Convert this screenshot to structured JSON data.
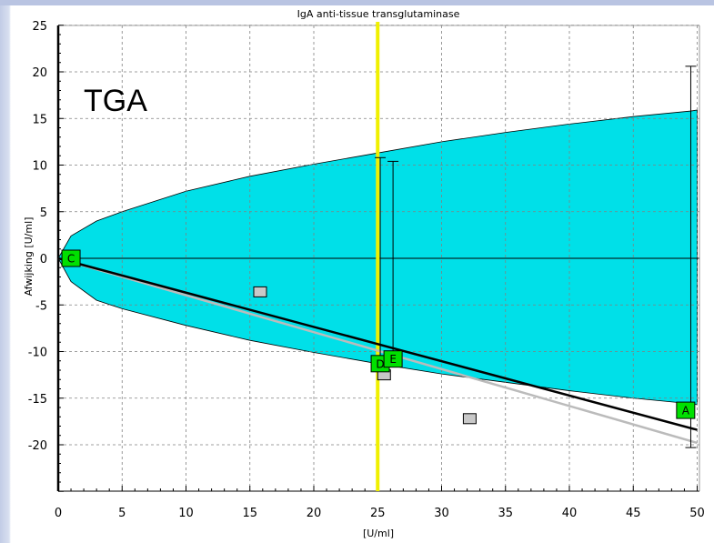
{
  "chart_data": {
    "type": "scatter",
    "title": "IgA anti-tissue transglutaminase",
    "annotation": "TGA",
    "xlabel": "[U/ml]",
    "ylabel": "Afwijking [U/ml]",
    "xlim": [
      0,
      50
    ],
    "ylim": [
      -25,
      25
    ],
    "x_ticks": [
      0,
      5,
      10,
      15,
      20,
      25,
      30,
      35,
      40,
      45,
      50
    ],
    "y_ticks": [
      25,
      20,
      15,
      10,
      5,
      0,
      -5,
      -10,
      -15,
      -20
    ],
    "grid": true,
    "colors": {
      "band": "#00e0e8",
      "vline": "#f0f000",
      "regression": "#000000",
      "regression_alt": "#bbbbbb",
      "labeled_point": "#00e000",
      "other_point": "#c8c8c8"
    },
    "vertical_line_x": 25,
    "band": {
      "x": [
        0,
        1,
        3,
        5,
        10,
        15,
        20,
        25,
        30,
        35,
        40,
        45,
        49.5,
        50
      ],
      "upper": [
        0,
        2.4,
        4.0,
        5.0,
        7.2,
        8.8,
        10.1,
        11.3,
        12.5,
        13.5,
        14.4,
        15.2,
        15.8,
        15.9
      ],
      "lower": [
        0,
        -2.5,
        -4.5,
        -5.4,
        -7.2,
        -8.8,
        -10.1,
        -11.3,
        -12.4,
        -13.3,
        -14.2,
        -15.0,
        -15.6,
        -15.7
      ]
    },
    "regression_lines": [
      {
        "x": [
          0,
          50
        ],
        "y": [
          0,
          -18.4
        ]
      },
      {
        "x": [
          0,
          50
        ],
        "y": [
          0,
          -19.8
        ]
      }
    ],
    "labeled_points": [
      {
        "label": "C",
        "x": 1,
        "y": 0
      },
      {
        "label": "D",
        "x": 25.2,
        "y": -11.3
      },
      {
        "label": "E",
        "x": 26.2,
        "y": -10.8
      },
      {
        "label": "A",
        "x": 49.1,
        "y": -16.3
      }
    ],
    "other_points": [
      {
        "x": 15.8,
        "y": -3.6
      },
      {
        "x": 25.5,
        "y": -12.5
      },
      {
        "x": 32.2,
        "y": -17.2
      }
    ],
    "error_bars": [
      {
        "x": 25.2,
        "low": -11.3,
        "high": 10.8
      },
      {
        "x": 26.2,
        "low": -10.8,
        "high": 10.4
      },
      {
        "x": 49.5,
        "low": -20.3,
        "high": 20.6
      }
    ]
  }
}
